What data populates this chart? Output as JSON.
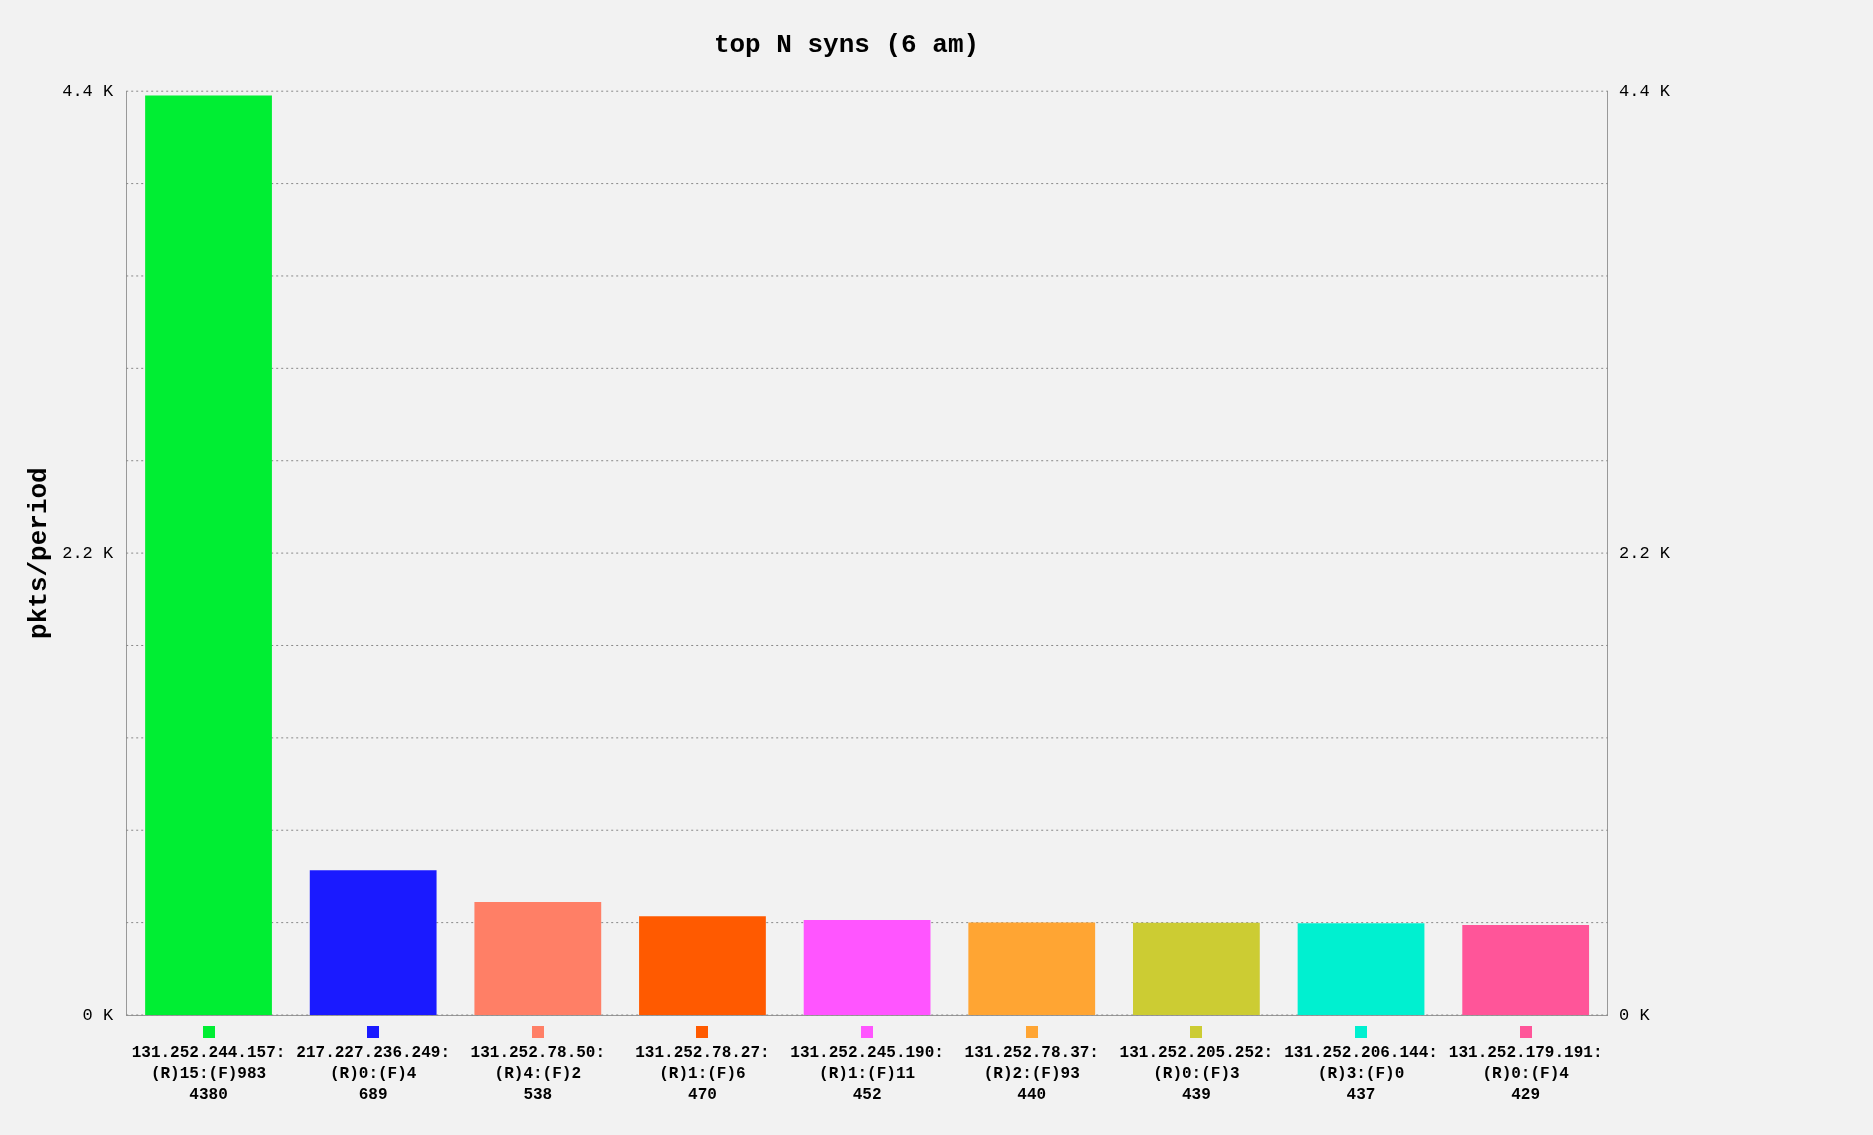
{
  "chart_data": {
    "type": "bar",
    "title": "top N syns (6 am)",
    "ylabel": "pkts/period",
    "categories": [
      "131.252.244.157:(R)15:(F)983",
      "217.227.236.249:(R)0:(F)4",
      "131.252.78.50:(R)4:(F)2",
      "131.252.78.27:(R)1:(F)6",
      "131.252.245.190:(R)1:(F)11",
      "131.252.78.37:(R)2:(F)93",
      "131.252.205.252:(R)0:(F)3",
      "131.252.206.144:(R)3:(F)0",
      "131.252.179.191:(R)0:(F)4"
    ],
    "values": [
      4380,
      689,
      538,
      470,
      452,
      440,
      439,
      437,
      429
    ],
    "colors": [
      "#00ee33",
      "#1a1aff",
      "#ff7f66",
      "#ff5a00",
      "#ff55ff",
      "#ffa533",
      "#cccc33",
      "#00f0d0",
      "#ff5599"
    ],
    "ylim": [
      0,
      4400
    ],
    "yticks": [
      {
        "value": 0,
        "label": "0 K"
      },
      {
        "value": 440,
        "label": null
      },
      {
        "value": 880,
        "label": null
      },
      {
        "value": 1320,
        "label": null
      },
      {
        "value": 1760,
        "label": null
      },
      {
        "value": 2200,
        "label": "2.2 K"
      },
      {
        "value": 2640,
        "label": null
      },
      {
        "value": 3080,
        "label": null
      },
      {
        "value": 3520,
        "label": null
      },
      {
        "value": 3960,
        "label": null
      },
      {
        "value": 4400,
        "label": "4.4 K"
      }
    ],
    "y2lim": [
      0,
      4400
    ],
    "y2ticks": [
      {
        "value": 0,
        "label": "0 K"
      },
      {
        "value": 2200,
        "label": "2.2 K"
      },
      {
        "value": 4400,
        "label": "4.4 K"
      }
    ],
    "grid": "y",
    "data_labels": true,
    "legend": false
  }
}
